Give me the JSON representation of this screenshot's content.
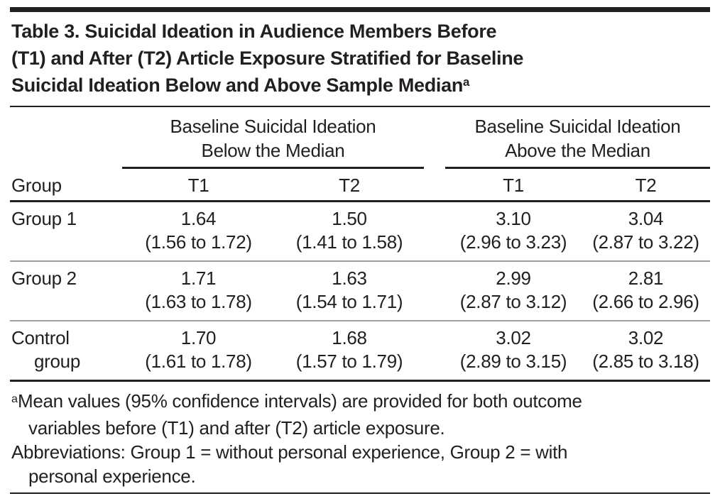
{
  "title": {
    "lines": [
      "Table 3. Suicidal Ideation in Audience Members Before",
      "(T1) and After (T2) Article Exposure Stratified for Baseline",
      "Suicidal Ideation Below and Above Sample Median"
    ],
    "footnote_marker": "a"
  },
  "table": {
    "spanners": [
      {
        "line1": "Baseline Suicidal Ideation",
        "line2": "Below the Median"
      },
      {
        "line1": "Baseline Suicidal Ideation",
        "line2": "Above the Median"
      }
    ],
    "stub_header": "Group",
    "sub_headers": [
      "T1",
      "T2",
      "T1",
      "T2"
    ],
    "rows": [
      {
        "group": "Group 1",
        "group_lines": [
          "Group 1",
          ""
        ],
        "cells": [
          {
            "mean": "1.64",
            "ci": "(1.56 to 1.72)"
          },
          {
            "mean": "1.50",
            "ci": "(1.41 to 1.58)"
          },
          {
            "mean": "3.10",
            "ci": "(2.96 to 3.23)"
          },
          {
            "mean": "3.04",
            "ci": "(2.87 to 3.22)"
          }
        ]
      },
      {
        "group": "Group 2",
        "group_lines": [
          "Group 2",
          ""
        ],
        "cells": [
          {
            "mean": "1.71",
            "ci": "(1.63 to 1.78)"
          },
          {
            "mean": "1.63",
            "ci": "(1.54 to 1.71)"
          },
          {
            "mean": "2.99",
            "ci": "(2.87 to 3.12)"
          },
          {
            "mean": "2.81",
            "ci": "(2.66 to 2.96)"
          }
        ]
      },
      {
        "group": "Control group",
        "group_lines": [
          "Control",
          "group"
        ],
        "cells": [
          {
            "mean": "1.70",
            "ci": "(1.61 to 1.78)"
          },
          {
            "mean": "1.68",
            "ci": "(1.57 to 1.79)"
          },
          {
            "mean": "3.02",
            "ci": "(2.89 to 3.15)"
          },
          {
            "mean": "3.02",
            "ci": "(2.85 to 3.18)"
          }
        ]
      }
    ]
  },
  "footnotes": {
    "marker": "a",
    "note_lines": [
      "Mean values (95% confidence intervals) are provided for both outcome",
      "variables before (T1) and after (T2) article exposure."
    ],
    "abbreviation_lines": [
      "Abbreviations: Group 1 = without personal experience, Group 2 = with",
      "personal experience."
    ]
  },
  "colors": {
    "text": "#231f20",
    "rule_dark": "#231f20",
    "rule_light": "#9da0a3",
    "background": "#ffffff"
  }
}
